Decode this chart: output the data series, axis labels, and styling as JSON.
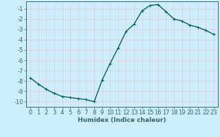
{
  "title": "",
  "xlabel": "Humidex (Indice chaleur)",
  "ylabel": "",
  "x": [
    0,
    1,
    2,
    3,
    4,
    5,
    6,
    7,
    8,
    9,
    10,
    11,
    12,
    13,
    14,
    15,
    16,
    17,
    18,
    19,
    20,
    21,
    22,
    23
  ],
  "y": [
    -7.7,
    -8.3,
    -8.8,
    -9.2,
    -9.5,
    -9.6,
    -9.7,
    -9.8,
    -10.0,
    -7.9,
    -6.3,
    -4.8,
    -3.2,
    -2.5,
    -1.2,
    -0.7,
    -0.6,
    -1.3,
    -2.0,
    -2.2,
    -2.6,
    -2.8,
    -3.1,
    -3.5
  ],
  "line_color": "#006060",
  "marker": "+",
  "background_color": "#cceeff",
  "grid_color": "#e8c8c8",
  "axis_color": "#336666",
  "ylim": [
    -10.5,
    -0.3
  ],
  "yticks": [
    -1,
    -2,
    -3,
    -4,
    -5,
    -6,
    -7,
    -8,
    -9,
    -10
  ],
  "xticks": [
    0,
    1,
    2,
    3,
    4,
    5,
    6,
    7,
    8,
    9,
    10,
    11,
    12,
    13,
    14,
    15,
    16,
    17,
    18,
    19,
    20,
    21,
    22,
    23
  ],
  "figsize": [
    3.2,
    2.0
  ],
  "dpi": 100,
  "label_fontsize": 6.5,
  "tick_fontsize": 6,
  "linewidth": 1.0,
  "markersize": 3.5,
  "markeredgewidth": 0.8
}
